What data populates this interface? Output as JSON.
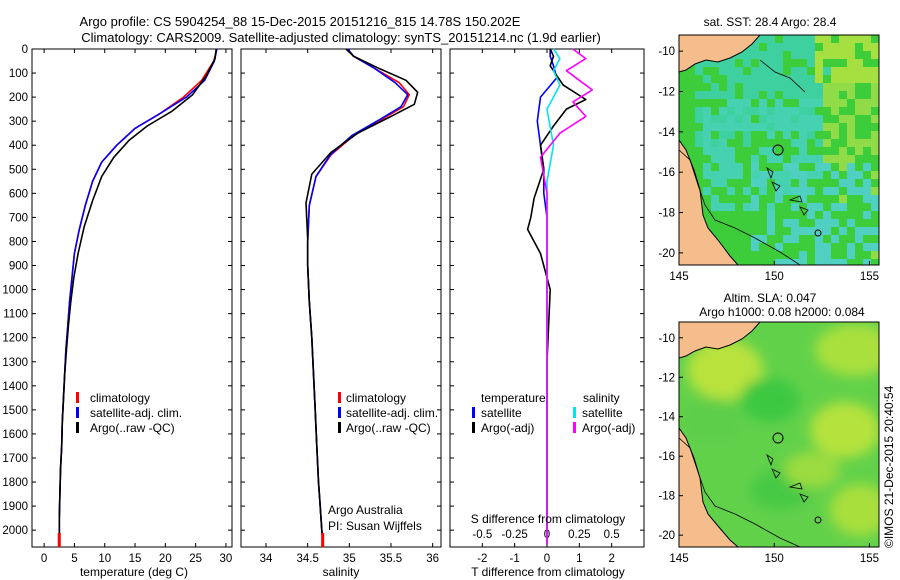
{
  "header": {
    "line1": "Argo profile: CS 5904254_88 15-Dec-2015 20151216_815 14.78S 150.202E",
    "line2": "Climatology: CARS2009. Satellite-adjusted climatology: synTS_20151214.nc (1.9d earlier)"
  },
  "footer": {
    "credit": "©IMOS 21-Dec-2015 20:40:54"
  },
  "colors": {
    "climatology": "#ff0000",
    "satellite": "#0000ff",
    "argo": "#000000",
    "salinity_satellite": "#00e5ee",
    "salinity_argo": "#ff00ff",
    "land": "#f5bd8c",
    "sea_green": "#3ecd3a"
  },
  "chart_data": [
    {
      "type": "line",
      "xlabel": "temperature (deg C)",
      "xlim": [
        -2,
        31
      ],
      "xticks": [
        "0",
        "5",
        "10",
        "15",
        "20",
        "25",
        "30"
      ],
      "xtick_values": [
        0,
        5,
        10,
        15,
        20,
        25,
        30
      ],
      "ylim": [
        0,
        2070
      ],
      "yticks": [
        "0",
        "100",
        "200",
        "300",
        "400",
        "500",
        "600",
        "700",
        "800",
        "900",
        "1000",
        "1100",
        "1200",
        "1300",
        "1400",
        "1500",
        "1600",
        "1700",
        "1800",
        "1900",
        "2000"
      ],
      "ytick_values": [
        0,
        100,
        200,
        300,
        400,
        500,
        600,
        700,
        800,
        900,
        1000,
        1100,
        1200,
        1300,
        1400,
        1500,
        1600,
        1700,
        1800,
        1900,
        2000
      ],
      "legend": [
        "climatology",
        "satellite-adj. clim.",
        "Argo(..raw -QC)"
      ],
      "series": [
        {
          "name": "climatology",
          "color": "#ff0000",
          "x": [
            28.5,
            28.0,
            26,
            23,
            19,
            15,
            12,
            9.5,
            8,
            6.8,
            5.8,
            5.0,
            4.6,
            4.2,
            3.9,
            3.6,
            3.4,
            3.2,
            3.0,
            2.9,
            2.7,
            2.6,
            2.5,
            2.5
          ],
          "y": [
            0,
            50,
            130,
            200,
            270,
            330,
            400,
            470,
            550,
            650,
            750,
            850,
            950,
            1050,
            1150,
            1250,
            1350,
            1450,
            1550,
            1650,
            1750,
            1850,
            1950,
            2060
          ]
        },
        {
          "name": "satellite-adj. clim.",
          "color": "#0000ff",
          "x": [
            28.5,
            28.1,
            26.5,
            23.5,
            19,
            15,
            12,
            9.5,
            8,
            6.8,
            5.8,
            5.0,
            4.6,
            4.2,
            3.9,
            3.6,
            3.4,
            3.2,
            3.0,
            2.9,
            2.7,
            2.6,
            2.5,
            2.5
          ],
          "y": [
            0,
            50,
            130,
            200,
            270,
            330,
            400,
            470,
            550,
            650,
            750,
            850,
            950,
            1050,
            1150,
            1250,
            1350,
            1450,
            1550,
            1650,
            1750,
            1850,
            1950,
            2060
          ]
        },
        {
          "name": "Argo(..raw -QC)",
          "color": "#000000",
          "x": [
            28.4,
            28.2,
            26.8,
            24.5,
            21,
            17,
            14,
            11.5,
            9.5,
            8.0,
            6.6,
            5.6,
            4.9,
            4.4,
            4.0,
            3.7,
            3.4,
            3.2,
            3.0,
            2.9,
            2.7,
            2.6,
            2.5,
            2.5
          ],
          "y": [
            0,
            40,
            110,
            190,
            260,
            320,
            380,
            450,
            530,
            630,
            740,
            850,
            950,
            1050,
            1150,
            1250,
            1350,
            1450,
            1550,
            1650,
            1750,
            1850,
            1950,
            2060
          ]
        }
      ],
      "annotations": []
    },
    {
      "type": "line",
      "xlabel": "salinity",
      "xlim": [
        33.7,
        36.1
      ],
      "xticks": [
        "34",
        "34.5",
        "35",
        "35.5",
        "36"
      ],
      "xtick_values": [
        34,
        34.5,
        35,
        35.5,
        36
      ],
      "ylim": [
        0,
        2070
      ],
      "legend": [
        "climatology",
        "satellite-adj. clim.",
        "Argo(..raw -QC)"
      ],
      "series": [
        {
          "name": "climatology",
          "color": "#ff0000",
          "x": [
            34.98,
            35.05,
            35.3,
            35.6,
            35.72,
            35.65,
            35.4,
            35.05,
            34.78,
            34.6,
            34.52,
            34.5,
            34.5,
            34.52,
            34.55,
            34.57,
            34.59,
            34.61,
            34.63,
            34.65,
            34.67,
            34.68,
            34.68
          ],
          "y": [
            0,
            30,
            80,
            140,
            190,
            240,
            290,
            360,
            440,
            530,
            650,
            800,
            900,
            1050,
            1200,
            1350,
            1500,
            1650,
            1800,
            1900,
            2000,
            2040,
            2060
          ]
        },
        {
          "name": "satellite-adj. clim.",
          "color": "#0000ff",
          "x": [
            34.98,
            35.05,
            35.3,
            35.55,
            35.7,
            35.62,
            35.38,
            35.03,
            34.77,
            34.6,
            34.52,
            34.5,
            34.5,
            34.52,
            34.55,
            34.57,
            34.59,
            34.61,
            34.63,
            34.65,
            34.67,
            34.68,
            34.68
          ],
          "y": [
            0,
            30,
            80,
            140,
            190,
            240,
            290,
            360,
            440,
            530,
            650,
            800,
            900,
            1050,
            1200,
            1350,
            1500,
            1650,
            1800,
            1900,
            2000,
            2040,
            2060
          ]
        },
        {
          "name": "Argo(..raw -QC)",
          "color": "#000000",
          "x": [
            34.96,
            35.05,
            35.35,
            35.68,
            35.82,
            35.78,
            35.5,
            35.1,
            34.78,
            34.55,
            34.48,
            34.5,
            34.5,
            34.52,
            34.55,
            34.57,
            34.59,
            34.61,
            34.63,
            34.65,
            34.67,
            34.68,
            34.68
          ],
          "y": [
            0,
            30,
            80,
            130,
            180,
            230,
            280,
            350,
            430,
            520,
            640,
            790,
            900,
            1050,
            1200,
            1350,
            1500,
            1650,
            1800,
            1900,
            2000,
            2040,
            2060
          ]
        }
      ],
      "annotations": [
        "Argo Australia",
        "PI: Susan Wijffels"
      ]
    },
    {
      "type": "line",
      "xlabel": "T difference from climatology",
      "xlabel2": "S difference from climatology",
      "xlim": [
        -3,
        3
      ],
      "xticks": [
        "-2",
        "-1",
        "0",
        "1",
        "2"
      ],
      "xtick_values": [
        -2,
        -1,
        0,
        1,
        2
      ],
      "xticks2": [
        "-0.5",
        "-0.25",
        "0",
        "0.25",
        "0.5"
      ],
      "xtick2_values": [
        -0.5,
        -0.25,
        0,
        0.25,
        0.5
      ],
      "ylim": [
        0,
        2070
      ],
      "legend_groups": [
        {
          "title": "temperature",
          "items": [
            "satellite",
            "Argo(-adj)"
          ]
        },
        {
          "title": "salinity",
          "items": [
            "satellite",
            "Argo(-adj)"
          ]
        }
      ],
      "series": [
        {
          "name": "temperature satellite",
          "color": "#0000ff",
          "x": [
            0.1,
            0.1,
            0.2,
            0.3,
            -0.2,
            -0.3,
            -0.2,
            -0.1,
            -0.1,
            0,
            0,
            0,
            0,
            0,
            0
          ],
          "y": [
            0,
            30,
            70,
            120,
            200,
            300,
            400,
            500,
            600,
            700,
            800,
            1000,
            1400,
            1800,
            2060
          ]
        },
        {
          "name": "temperature Argo(-adj)",
          "color": "#000000",
          "x": [
            0.1,
            0.2,
            0.1,
            0.5,
            1.2,
            0.6,
            0.2,
            -0.2,
            -0.1,
            -0.4,
            -0.5,
            -0.6,
            -0.2,
            0.1,
            0,
            0,
            0
          ],
          "y": [
            0,
            30,
            70,
            150,
            210,
            250,
            320,
            400,
            500,
            620,
            700,
            750,
            850,
            1000,
            1300,
            1700,
            2060
          ]
        },
        {
          "name": "salinity satellite",
          "color": "#00e5ee",
          "x": [
            0.05,
            0.1,
            0.05,
            0.1,
            0.0,
            0.05,
            0.0,
            0,
            0,
            0,
            0
          ],
          "y": [
            0,
            40,
            90,
            150,
            250,
            400,
            550,
            700,
            1000,
            1500,
            2060
          ]
        },
        {
          "name": "salinity Argo(-adj)",
          "color": "#ff00ff",
          "x": [
            0.2,
            0.3,
            0.15,
            0.25,
            0.35,
            0.2,
            0.3,
            0.1,
            -0.05,
            0,
            0,
            0
          ],
          "y": [
            0,
            40,
            90,
            130,
            170,
            220,
            280,
            350,
            450,
            600,
            1000,
            2060
          ]
        }
      ]
    },
    {
      "type": "heatmap",
      "title": "sat. SST: 28.4  Argo: 28.4",
      "xlim": [
        145,
        155.5
      ],
      "ylim": [
        -20.6,
        -9.2
      ],
      "xticks": [
        "145",
        "150",
        "155"
      ],
      "xtick_values": [
        145,
        150,
        155
      ],
      "yticks": [
        "-10",
        "-12",
        "-14",
        "-16",
        "-18",
        "-20"
      ],
      "ytick_values": [
        -10,
        -12,
        -14,
        -16,
        -18,
        -20
      ],
      "markers": [
        {
          "lon": 150.2,
          "lat": -14.8
        },
        {
          "lon": 152.2,
          "lat": -19.2
        }
      ]
    },
    {
      "type": "heatmap",
      "title_line1": "Altim. SLA: 0.047",
      "title_line2": "Argo h1000: 0.08  h2000: 0.084",
      "xlim": [
        145,
        155.5
      ],
      "ylim": [
        -20.6,
        -9.2
      ],
      "xticks": [
        "145",
        "150",
        "155"
      ],
      "xtick_values": [
        145,
        150,
        155
      ],
      "yticks": [
        "-10",
        "-12",
        "-14",
        "-16",
        "-18",
        "-20"
      ],
      "ytick_values": [
        -10,
        -12,
        -14,
        -16,
        -18,
        -20
      ],
      "markers": [
        {
          "lon": 150.2,
          "lat": -14.8
        },
        {
          "lon": 152.2,
          "lat": -19.2
        }
      ]
    }
  ]
}
